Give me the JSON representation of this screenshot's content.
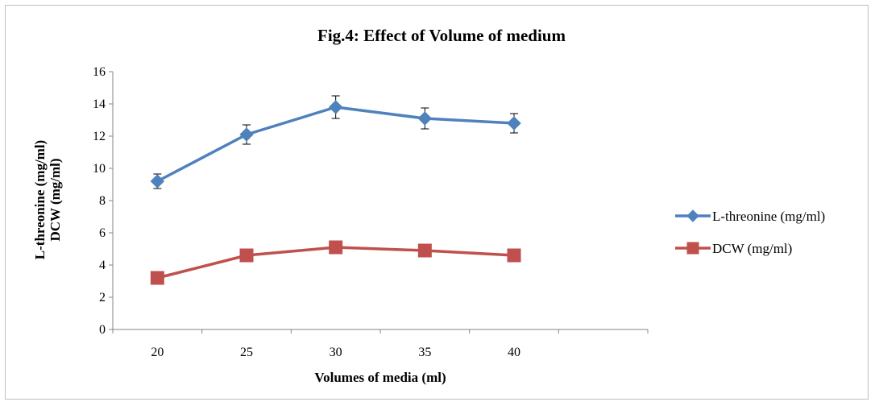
{
  "chart_data": {
    "type": "line",
    "title": "Fig.4: Effect of Volume of medium",
    "xlabel": "Volumes of media (ml)",
    "ylabel_lines": [
      "L-threonine (mg/ml)",
      "DCW (mg/ml)"
    ],
    "categories": [
      "20",
      "25",
      "30",
      "35",
      "40"
    ],
    "ylim": [
      0,
      16
    ],
    "yticks": [
      0,
      2,
      4,
      6,
      8,
      10,
      12,
      14,
      16
    ],
    "grid": false,
    "legend_position": "right",
    "series": [
      {
        "name": "L-threonine (mg/ml)",
        "color": "#4f81bd",
        "marker": "diamond",
        "values": [
          9.2,
          12.1,
          13.8,
          13.1,
          12.8
        ],
        "error": [
          0.45,
          0.6,
          0.7,
          0.65,
          0.6
        ]
      },
      {
        "name": "DCW (mg/ml)",
        "color": "#c0504d",
        "marker": "square",
        "values": [
          3.2,
          4.6,
          5.1,
          4.9,
          4.6
        ]
      }
    ]
  }
}
